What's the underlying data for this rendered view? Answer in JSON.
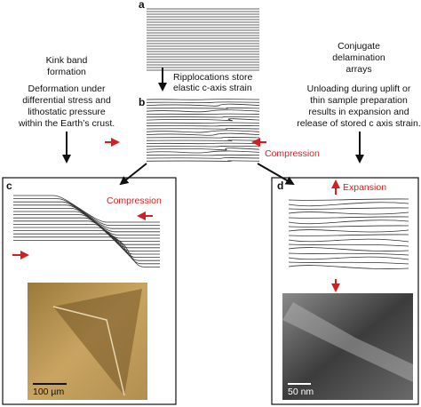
{
  "panels": {
    "a": {
      "label": "a"
    },
    "b": {
      "label": "b",
      "caption": [
        "Ripplocations store",
        "elastic c-axis strain"
      ],
      "annotation": "Compression"
    },
    "c": {
      "label": "c",
      "annotation": "Compression",
      "scale_bar": "100 µm"
    },
    "d": {
      "label": "d",
      "annotation": "Expansion",
      "scale_bar": "50 nm"
    }
  },
  "left_text": {
    "title": [
      "Kink band",
      "formation"
    ],
    "body": [
      "Deformation under",
      "differential stress and",
      "lithostatic pressure",
      "within the Earth’s crust."
    ]
  },
  "right_text": {
    "title": [
      "Conjugate",
      "delamination",
      "arrays"
    ],
    "body": [
      "Unloading during uplift or",
      "thin sample preparation",
      "results in expansion and",
      "release of stored c axis strain."
    ]
  }
}
